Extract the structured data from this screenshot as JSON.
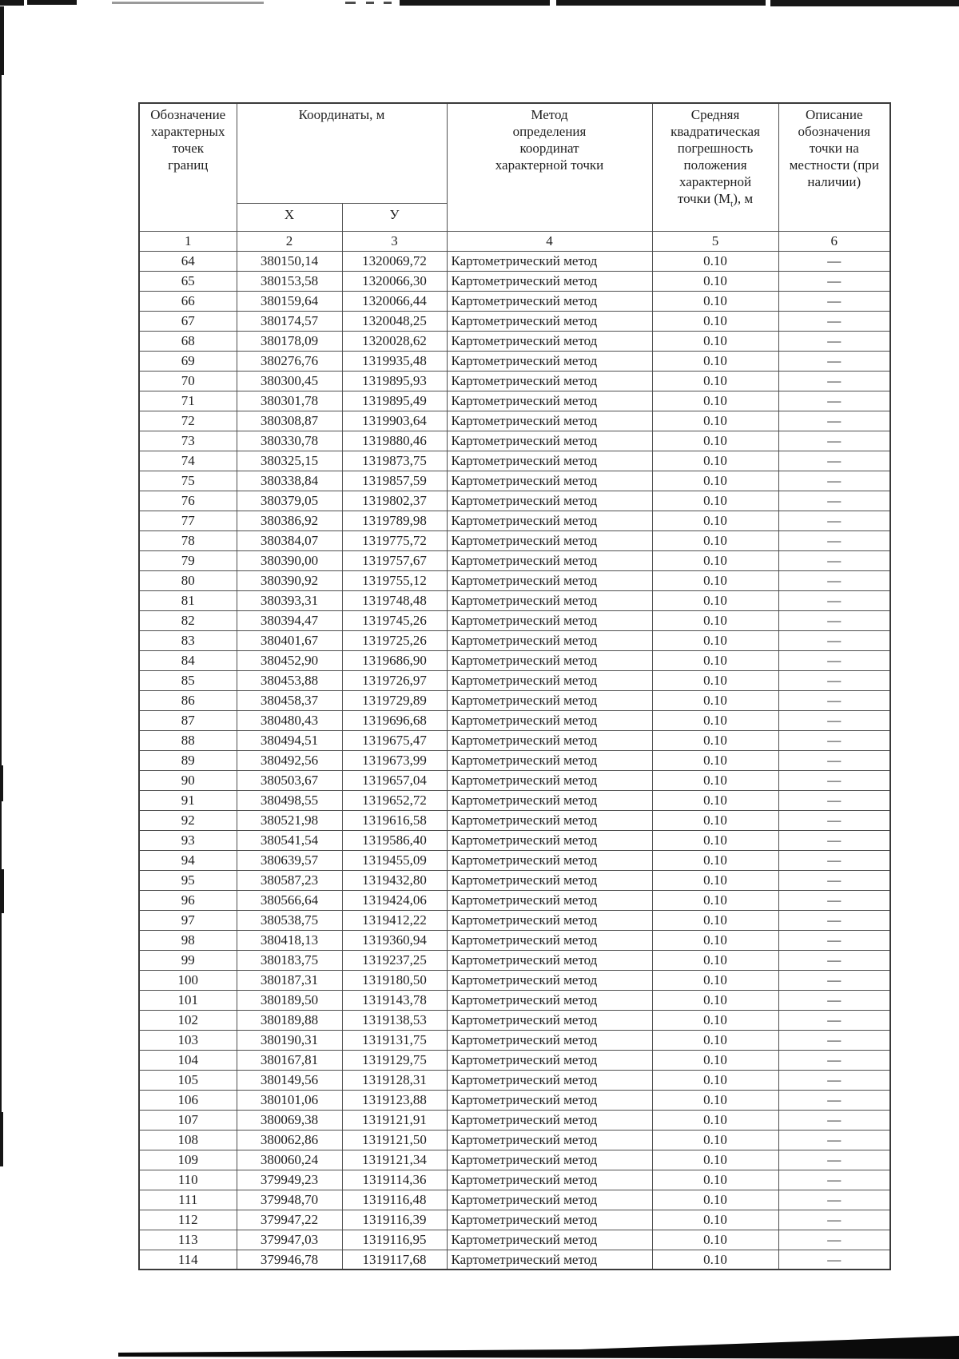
{
  "page": {
    "background": "#ffffff",
    "text_color": "#1f1f1f",
    "border_color": "#4f4f4f"
  },
  "table": {
    "header": {
      "col1_lines": [
        "Обозначение",
        "характерных",
        "точек",
        "границ"
      ],
      "coords_title": "Координаты, м",
      "sub_x": "X",
      "sub_y": "У",
      "col4_lines": [
        "Метод",
        "определения",
        "координат",
        "характерной точки"
      ],
      "col5_lines": [
        "Средняя",
        "квадратическая",
        "погрешность",
        "положения",
        "характерной"
      ],
      "col5_last_prefix": "точки (М",
      "col5_sub": "t",
      "col5_last_suffix": "), м",
      "col6_lines": [
        "Описание",
        "обозначения",
        "точки на",
        "местности (при",
        "наличии)"
      ],
      "numbers": [
        "1",
        "2",
        "3",
        "4",
        "5",
        "6"
      ]
    },
    "method": "Картометрический метод",
    "error": "0.10",
    "desc": "—",
    "rows": [
      [
        "64",
        "380150,14",
        "1320069,72"
      ],
      [
        "65",
        "380153,58",
        "1320066,30"
      ],
      [
        "66",
        "380159,64",
        "1320066,44"
      ],
      [
        "67",
        "380174,57",
        "1320048,25"
      ],
      [
        "68",
        "380178,09",
        "1320028,62"
      ],
      [
        "69",
        "380276,76",
        "1319935,48"
      ],
      [
        "70",
        "380300,45",
        "1319895,93"
      ],
      [
        "71",
        "380301,78",
        "1319895,49"
      ],
      [
        "72",
        "380308,87",
        "1319903,64"
      ],
      [
        "73",
        "380330,78",
        "1319880,46"
      ],
      [
        "74",
        "380325,15",
        "1319873,75"
      ],
      [
        "75",
        "380338,84",
        "1319857,59"
      ],
      [
        "76",
        "380379,05",
        "1319802,37"
      ],
      [
        "77",
        "380386,92",
        "1319789,98"
      ],
      [
        "78",
        "380384,07",
        "1319775,72"
      ],
      [
        "79",
        "380390,00",
        "1319757,67"
      ],
      [
        "80",
        "380390,92",
        "1319755,12"
      ],
      [
        "81",
        "380393,31",
        "1319748,48"
      ],
      [
        "82",
        "380394,47",
        "1319745,26"
      ],
      [
        "83",
        "380401,67",
        "1319725,26"
      ],
      [
        "84",
        "380452,90",
        "1319686,90"
      ],
      [
        "85",
        "380453,88",
        "1319726,97"
      ],
      [
        "86",
        "380458,37",
        "1319729,89"
      ],
      [
        "87",
        "380480,43",
        "1319696,68"
      ],
      [
        "88",
        "380494,51",
        "1319675,47"
      ],
      [
        "89",
        "380492,56",
        "1319673,99"
      ],
      [
        "90",
        "380503,67",
        "1319657,04"
      ],
      [
        "91",
        "380498,55",
        "1319652,72"
      ],
      [
        "92",
        "380521,98",
        "1319616,58"
      ],
      [
        "93",
        "380541,54",
        "1319586,40"
      ],
      [
        "94",
        "380639,57",
        "1319455,09"
      ],
      [
        "95",
        "380587,23",
        "1319432,80"
      ],
      [
        "96",
        "380566,64",
        "1319424,06"
      ],
      [
        "97",
        "380538,75",
        "1319412,22"
      ],
      [
        "98",
        "380418,13",
        "1319360,94"
      ],
      [
        "99",
        "380183,75",
        "1319237,25"
      ],
      [
        "100",
        "380187,31",
        "1319180,50"
      ],
      [
        "101",
        "380189,50",
        "1319143,78"
      ],
      [
        "102",
        "380189,88",
        "1319138,53"
      ],
      [
        "103",
        "380190,31",
        "1319131,75"
      ],
      [
        "104",
        "380167,81",
        "1319129,75"
      ],
      [
        "105",
        "380149,56",
        "1319128,31"
      ],
      [
        "106",
        "380101,06",
        "1319123,88"
      ],
      [
        "107",
        "380069,38",
        "1319121,91"
      ],
      [
        "108",
        "380062,86",
        "1319121,50"
      ],
      [
        "109",
        "380060,24",
        "1319121,34"
      ],
      [
        "110",
        "379949,23",
        "1319114,36"
      ],
      [
        "111",
        "379948,70",
        "1319116,48"
      ],
      [
        "112",
        "379947,22",
        "1319116,39"
      ],
      [
        "113",
        "379947,03",
        "1319116,95"
      ],
      [
        "114",
        "379946,78",
        "1319117,68"
      ]
    ]
  }
}
